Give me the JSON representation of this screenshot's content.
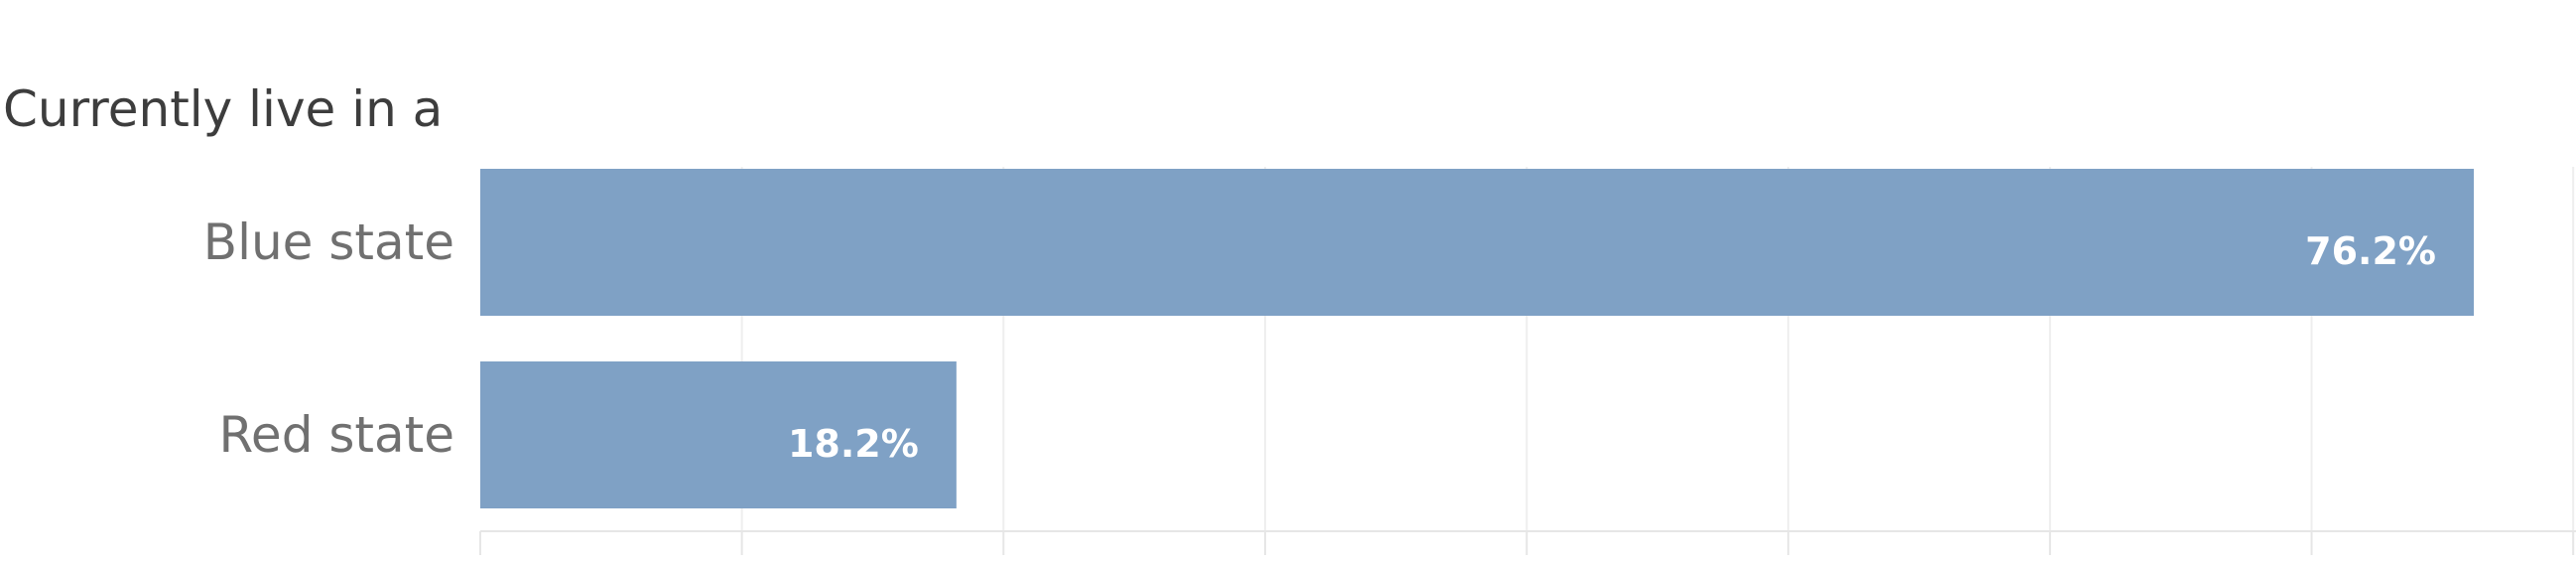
{
  "chart_data": {
    "type": "bar",
    "orientation": "horizontal",
    "row_header": "Currently live in a",
    "categories": [
      "Blue state",
      "Red state"
    ],
    "values": [
      76.2,
      18.2
    ],
    "value_labels": [
      "76.2%",
      "18.2%"
    ],
    "xlim": [
      0,
      80
    ],
    "grid": true,
    "bar_color": "#7fa1c5"
  }
}
